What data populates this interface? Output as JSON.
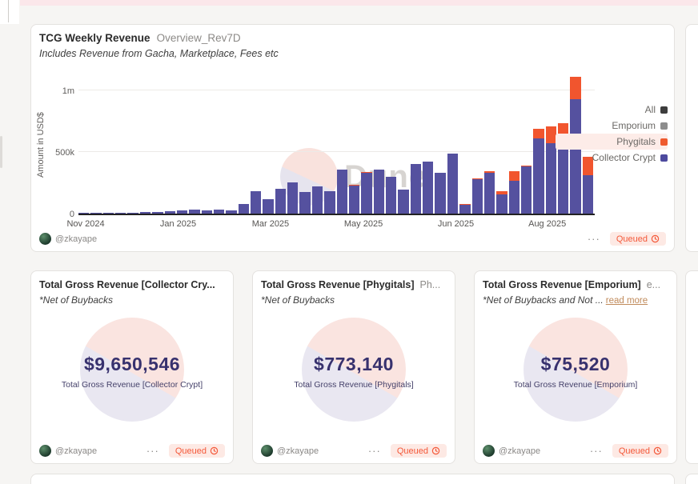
{
  "chart_card": {
    "title": "TCG Weekly Revenue",
    "query_name": "Overview_Rev7D",
    "subtitle": "Includes Revenue from Gacha, Marketplace, Fees etc",
    "watermark": "Dune",
    "author": "@zkayape",
    "kebab_label": "···",
    "status": "Queued"
  },
  "chart_data": {
    "type": "bar",
    "stacked": true,
    "x_unit": "week",
    "title": "TCG Weekly Revenue Overview_Rev7D",
    "xlabel": "",
    "ylabel": "Amount in USD$",
    "ylim_usd": [
      0,
      1117000
    ],
    "grid": "horizontal",
    "legend_position": "right",
    "y_ticks": [
      {
        "label": "0",
        "value": 0
      },
      {
        "label": "500k",
        "value": 500000
      },
      {
        "label": "1m",
        "value": 1000000
      }
    ],
    "x_ticks": [
      {
        "label": "Nov 2024",
        "pos_pct": 1.4
      },
      {
        "label": "Jan 2025",
        "pos_pct": 19.3
      },
      {
        "label": "Mar 2025",
        "pos_pct": 37.2
      },
      {
        "label": "May 2025",
        "pos_pct": 55.2
      },
      {
        "label": "Jun 2025",
        "pos_pct": 73.1
      },
      {
        "label": "Aug 2025",
        "pos_pct": 90.8
      }
    ],
    "legend": [
      {
        "label": "All",
        "color": "#3d3d3d",
        "highlighted": false
      },
      {
        "label": "Emporium",
        "color": "#8d8d8d",
        "highlighted": false
      },
      {
        "label": "Phygitals",
        "color": "#ef5a2e",
        "highlighted": true
      },
      {
        "label": "Collector Crypt",
        "color": "#4d4a9e",
        "highlighted": false
      }
    ],
    "series": [
      {
        "name": "Collector Crypt",
        "color": "#55519f",
        "values_usd": [
          3000,
          8000,
          2000,
          3000,
          6000,
          10000,
          15000,
          20000,
          26000,
          30000,
          26000,
          32000,
          28000,
          75000,
          182000,
          117000,
          201000,
          253000,
          177000,
          221000,
          182000,
          359000,
          230000,
          330000,
          356000,
          301000,
          193000,
          402000,
          420000,
          334000,
          485000,
          70000,
          280000,
          334000,
          155000,
          269000,
          385000,
          613000,
          570000,
          602000,
          927000,
          310000
        ]
      },
      {
        "name": "Phygitals",
        "color": "#f1552e",
        "values_usd": [
          0,
          0,
          0,
          0,
          0,
          0,
          0,
          0,
          0,
          0,
          0,
          0,
          0,
          0,
          0,
          0,
          0,
          0,
          0,
          0,
          0,
          0,
          6000,
          4000,
          0,
          0,
          0,
          0,
          0,
          0,
          0,
          8000,
          6000,
          10000,
          27000,
          76000,
          8000,
          77000,
          140000,
          130000,
          185000,
          151000
        ]
      }
    ]
  },
  "counter_cards": [
    {
      "title": "Total Gross Revenue [Collector Cry...",
      "query_name": "",
      "subtitle": "*Net of Buybacks",
      "value": "$9,650,546",
      "label": "Total Gross Revenue [Collector Crypt]",
      "author": "@zkayape",
      "kebab_label": "···",
      "status": "Queued"
    },
    {
      "title": "Total Gross Revenue [Phygitals]",
      "query_name": "Ph...",
      "subtitle": "*Net of Buybacks",
      "value": "$773,140",
      "label": "Total Gross Revenue [Phygitals]",
      "author": "@zkayape",
      "kebab_label": "···",
      "status": "Queued"
    },
    {
      "title": "Total Gross Revenue [Emporium]",
      "query_name": "e...",
      "subtitle": "*Net of Buybacks and Not ...",
      "read_more": "read more",
      "value": "$75,520",
      "label": "Total Gross Revenue [Emporium]",
      "author": "@zkayape",
      "kebab_label": "···",
      "status": "Queued"
    }
  ],
  "colors": {
    "page_background": "#f6f5f3",
    "banner": "#fbe7ea",
    "bar_collector_crypt": "#55519f",
    "bar_phygitals": "#f1552e",
    "counter_value": "#37316e",
    "status_text": "#f4593a",
    "status_background": "#fde9e4"
  }
}
